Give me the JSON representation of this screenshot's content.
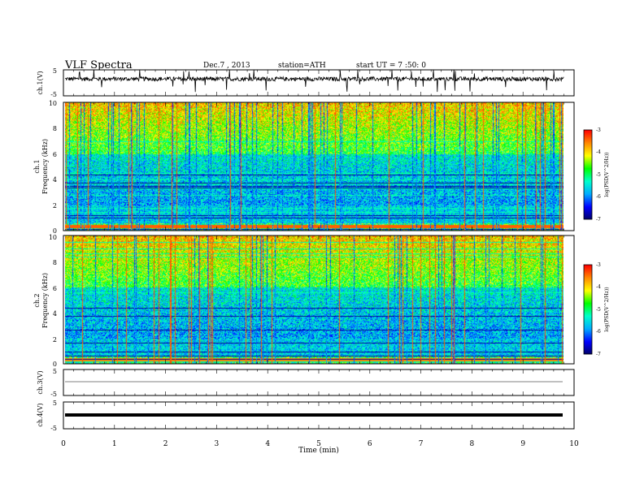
{
  "header": {
    "title": "VLF  Spectra",
    "date": "Dec.7  , 2013",
    "station": "station=ATH",
    "start": "start  UT  =   7  :50: 0"
  },
  "chart_data": [
    {
      "type": "line",
      "ylabel": "ch.1(V)",
      "yticks": [
        "5",
        "-5"
      ],
      "ylim": [
        -5,
        5
      ],
      "xlim": [
        0,
        10
      ],
      "data_extent_min": 9.8,
      "series": [
        {
          "description": "noisy waveform centred near +1.5 V with frequent spikes",
          "baseline": 1.5,
          "noise_amplitude": 0.8,
          "spike_amplitude": 5
        }
      ]
    },
    {
      "type": "heatmap",
      "ylabel": "ch.1",
      "ylabel2": "Frequency  (kHz)",
      "yticks": [
        "0",
        "2",
        "4",
        "6",
        "8",
        "10"
      ],
      "ylim": [
        0,
        10
      ],
      "xlim": [
        0,
        10
      ],
      "colorbar": {
        "label": "log(PSD(V^2/Hz))",
        "ticks": [
          "-3",
          "-4",
          "-5",
          "-6",
          "-7"
        ],
        "range": [
          -7,
          -3
        ]
      }
    },
    {
      "type": "heatmap",
      "ylabel": "ch.2",
      "ylabel2": "Frequency  (kHz)",
      "yticks": [
        "0",
        "2",
        "4",
        "6",
        "8",
        "10"
      ],
      "ylim": [
        0,
        10
      ],
      "xlim": [
        0,
        10
      ],
      "colorbar": {
        "label": "log(PSD(V^2/Hz))",
        "ticks": [
          "-3",
          "-4",
          "-5",
          "-6",
          "-7"
        ],
        "range": [
          -7,
          -3
        ]
      }
    },
    {
      "type": "line",
      "ylabel": "ch.3(V)",
      "yticks": [
        "5",
        "-5"
      ],
      "ylim": [
        -5,
        5
      ],
      "xlim": [
        0,
        10
      ],
      "series": [
        {
          "description": "flat trace",
          "level": 0
        }
      ]
    },
    {
      "type": "line",
      "ylabel": "ch.4(V)",
      "yticks": [
        "5",
        "-5"
      ],
      "ylim": [
        -5,
        5
      ],
      "xlim": [
        0,
        10
      ],
      "series": [
        {
          "description": "flat thick trace",
          "level": 0
        }
      ]
    }
  ],
  "xaxis": {
    "label": "Time  (min)",
    "ticks": [
      "0",
      "1",
      "2",
      "3",
      "4",
      "5",
      "6",
      "7",
      "8",
      "9",
      "10"
    ],
    "range": [
      0,
      10
    ]
  },
  "colors": {
    "scale": [
      "#000066",
      "#0000ff",
      "#00aaff",
      "#00ffcc",
      "#00ff00",
      "#ffff00",
      "#ff8800",
      "#ff0000",
      "#ffffff"
    ]
  }
}
